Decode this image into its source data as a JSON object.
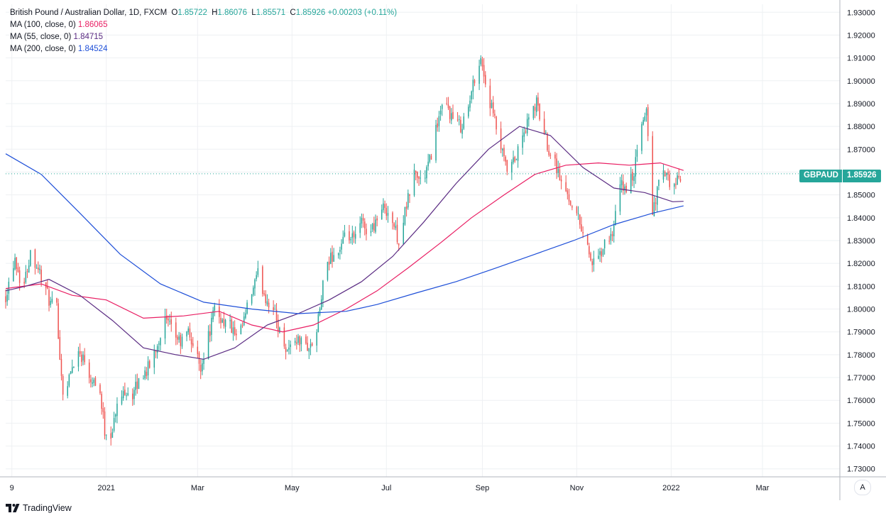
{
  "legend": {
    "title_line": "British Pound / Australian Dollar, 1D, FXCM",
    "o_key": "O",
    "o_val": "1.85722",
    "h_key": "H",
    "h_val": "1.86076",
    "l_key": "L",
    "l_val": "1.85571",
    "c_key": "C",
    "c_val": "1.85926",
    "change": "+0.00203 (+0.11%)",
    "ma100_label": "MA (100, close, 0)",
    "ma100_val": "1.86065",
    "ma55_label": "MA (55, close, 0)",
    "ma55_val": "1.84715",
    "ma200_label": "MA (200, close, 0)",
    "ma200_val": "1.84524"
  },
  "price_tag": {
    "symbol": "GBPAUD",
    "value": "1.85926"
  },
  "scale_mode": "A",
  "brand": "TradingView",
  "colors": {
    "up": "#26a69a",
    "down": "#ef5350",
    "ma100": "#e91e63",
    "ma55": "#5b2c83",
    "ma200": "#1e4fd8",
    "grid": "#eef0f3",
    "axis": "#b2b5be"
  },
  "chart_data": {
    "type": "candlestick",
    "symbol": "GBPAUD",
    "y_ticks": [
      "1.93000",
      "1.92000",
      "1.91000",
      "1.90000",
      "1.89000",
      "1.88000",
      "1.87000",
      "1.86000",
      "1.85000",
      "1.84000",
      "1.83000",
      "1.82000",
      "1.81000",
      "1.80000",
      "1.79000",
      "1.78000",
      "1.77000",
      "1.76000",
      "1.75000",
      "1.74000",
      "1.73000"
    ],
    "ylim": [
      1.7265,
      1.9335
    ],
    "x_labels": [
      "9",
      "2021",
      "Mar",
      "May",
      "Jul",
      "Sep",
      "Nov",
      "2022",
      "Mar"
    ],
    "x_axis": {
      "start": "2020-10-28",
      "end": "2022-04-20",
      "label_dates": [
        "2020-11-01",
        "2021-01-01",
        "2021-03-01",
        "2021-05-01",
        "2021-07-01",
        "2021-09-01",
        "2021-11-01",
        "2022-01-01",
        "2022-03-01"
      ]
    },
    "last_close": 1.85926,
    "price_path": [
      [
        "2020-10-28",
        1.806
      ],
      [
        "2020-11-03",
        1.823
      ],
      [
        "2020-11-08",
        1.808
      ],
      [
        "2020-11-13",
        1.825
      ],
      [
        "2020-11-18",
        1.818
      ],
      [
        "2020-11-22",
        1.81
      ],
      [
        "2020-11-26",
        1.802
      ],
      [
        "2020-11-30",
        1.8
      ],
      [
        "2020-12-03",
        1.77
      ],
      [
        "2020-12-05",
        1.76
      ],
      [
        "2020-12-08",
        1.77
      ],
      [
        "2020-12-13",
        1.782
      ],
      [
        "2020-12-18",
        1.778
      ],
      [
        "2020-12-22",
        1.77
      ],
      [
        "2020-12-27",
        1.768
      ],
      [
        "2020-12-31",
        1.747
      ],
      [
        "2021-01-04",
        1.745
      ],
      [
        "2021-01-08",
        1.757
      ],
      [
        "2021-01-13",
        1.765
      ],
      [
        "2021-01-18",
        1.762
      ],
      [
        "2021-01-23",
        1.77
      ],
      [
        "2021-01-29",
        1.775
      ],
      [
        "2021-02-03",
        1.785
      ],
      [
        "2021-02-08",
        1.795
      ],
      [
        "2021-02-13",
        1.79
      ],
      [
        "2021-02-18",
        1.785
      ],
      [
        "2021-02-23",
        1.79
      ],
      [
        "2021-02-28",
        1.78
      ],
      [
        "2021-03-03",
        1.775
      ],
      [
        "2021-03-07",
        1.785
      ],
      [
        "2021-03-12",
        1.8
      ],
      [
        "2021-03-17",
        1.795
      ],
      [
        "2021-03-22",
        1.793
      ],
      [
        "2021-03-27",
        1.785
      ],
      [
        "2021-03-31",
        1.795
      ],
      [
        "2021-04-04",
        1.805
      ],
      [
        "2021-04-09",
        1.815
      ],
      [
        "2021-04-14",
        1.805
      ],
      [
        "2021-04-19",
        1.8
      ],
      [
        "2021-04-23",
        1.79
      ],
      [
        "2021-04-28",
        1.782
      ],
      [
        "2021-05-03",
        1.787
      ],
      [
        "2021-05-08",
        1.785
      ],
      [
        "2021-05-13",
        1.783
      ],
      [
        "2021-05-17",
        1.79
      ],
      [
        "2021-05-21",
        1.81
      ],
      [
        "2021-05-26",
        1.823
      ],
      [
        "2021-05-31",
        1.825
      ],
      [
        "2021-06-05",
        1.832
      ],
      [
        "2021-06-10",
        1.83
      ],
      [
        "2021-06-15",
        1.838
      ],
      [
        "2021-06-20",
        1.833
      ],
      [
        "2021-06-25",
        1.84
      ],
      [
        "2021-06-30",
        1.845
      ],
      [
        "2021-07-04",
        1.84
      ],
      [
        "2021-07-09",
        1.83
      ],
      [
        "2021-07-14",
        1.845
      ],
      [
        "2021-07-19",
        1.86
      ],
      [
        "2021-07-24",
        1.855
      ],
      [
        "2021-07-29",
        1.865
      ],
      [
        "2021-08-03",
        1.882
      ],
      [
        "2021-08-08",
        1.89
      ],
      [
        "2021-08-13",
        1.883
      ],
      [
        "2021-08-18",
        1.88
      ],
      [
        "2021-08-23",
        1.888
      ],
      [
        "2021-08-28",
        1.905
      ],
      [
        "2021-08-31",
        1.91
      ],
      [
        "2021-09-04",
        1.895
      ],
      [
        "2021-09-08",
        1.885
      ],
      [
        "2021-09-13",
        1.87
      ],
      [
        "2021-09-17",
        1.86
      ],
      [
        "2021-09-22",
        1.865
      ],
      [
        "2021-09-27",
        1.875
      ],
      [
        "2021-10-02",
        1.885
      ],
      [
        "2021-10-06",
        1.89
      ],
      [
        "2021-10-10",
        1.88
      ],
      [
        "2021-10-14",
        1.87
      ],
      [
        "2021-10-18",
        1.865
      ],
      [
        "2021-10-22",
        1.855
      ],
      [
        "2021-10-26",
        1.85
      ],
      [
        "2021-10-30",
        1.845
      ],
      [
        "2021-11-03",
        1.838
      ],
      [
        "2021-11-07",
        1.83
      ],
      [
        "2021-11-10",
        1.822
      ],
      [
        "2021-11-13",
        1.818
      ],
      [
        "2021-11-17",
        1.825
      ],
      [
        "2021-11-21",
        1.83
      ],
      [
        "2021-11-25",
        1.835
      ],
      [
        "2021-11-29",
        1.855
      ],
      [
        "2021-12-03",
        1.852
      ],
      [
        "2021-12-08",
        1.86
      ],
      [
        "2021-12-13",
        1.88
      ],
      [
        "2021-12-16",
        1.888
      ],
      [
        "2021-12-18",
        1.865
      ],
      [
        "2021-12-20",
        1.842
      ],
      [
        "2021-12-24",
        1.855
      ],
      [
        "2021-12-28",
        1.86
      ],
      [
        "2022-01-01",
        1.852
      ],
      [
        "2022-01-05",
        1.856
      ],
      [
        "2022-01-09",
        1.8593
      ]
    ],
    "series": [
      {
        "name": "MA (100, close, 0)",
        "color": "#e91e63",
        "points": [
          [
            "2020-10-28",
            1.809
          ],
          [
            "2020-11-20",
            1.811
          ],
          [
            "2020-12-10",
            1.806
          ],
          [
            "2021-01-01",
            1.804
          ],
          [
            "2021-01-25",
            1.796
          ],
          [
            "2021-02-20",
            1.797
          ],
          [
            "2021-03-15",
            1.799
          ],
          [
            "2021-04-05",
            1.793
          ],
          [
            "2021-04-25",
            1.79
          ],
          [
            "2021-05-15",
            1.793
          ],
          [
            "2021-06-05",
            1.8
          ],
          [
            "2021-06-25",
            1.808
          ],
          [
            "2021-07-15",
            1.818
          ],
          [
            "2021-08-05",
            1.829
          ],
          [
            "2021-08-25",
            1.84
          ],
          [
            "2021-09-15",
            1.85
          ],
          [
            "2021-10-05",
            1.859
          ],
          [
            "2021-10-25",
            1.863
          ],
          [
            "2021-11-15",
            1.864
          ],
          [
            "2021-12-05",
            1.863
          ],
          [
            "2021-12-25",
            1.864
          ],
          [
            "2022-01-09",
            1.8607
          ]
        ]
      },
      {
        "name": "MA (55, close, 0)",
        "color": "#5b2c83",
        "points": [
          [
            "2020-10-28",
            1.808
          ],
          [
            "2020-11-10",
            1.81
          ],
          [
            "2020-11-25",
            1.813
          ],
          [
            "2020-12-15",
            1.806
          ],
          [
            "2021-01-05",
            1.795
          ],
          [
            "2021-01-25",
            1.783
          ],
          [
            "2021-02-15",
            1.78
          ],
          [
            "2021-03-05",
            1.778
          ],
          [
            "2021-03-25",
            1.783
          ],
          [
            "2021-04-15",
            1.793
          ],
          [
            "2021-05-05",
            1.798
          ],
          [
            "2021-05-25",
            1.804
          ],
          [
            "2021-06-15",
            1.812
          ],
          [
            "2021-07-05",
            1.823
          ],
          [
            "2021-07-25",
            1.838
          ],
          [
            "2021-08-15",
            1.855
          ],
          [
            "2021-09-05",
            1.87
          ],
          [
            "2021-09-25",
            1.88
          ],
          [
            "2021-10-15",
            1.876
          ],
          [
            "2021-11-05",
            1.862
          ],
          [
            "2021-11-25",
            1.853
          ],
          [
            "2021-12-15",
            1.851
          ],
          [
            "2022-01-02",
            1.847
          ],
          [
            "2022-01-09",
            1.8472
          ]
        ]
      },
      {
        "name": "MA (200, close, 0)",
        "color": "#1e4fd8",
        "points": [
          [
            "2020-10-28",
            1.868
          ],
          [
            "2020-11-20",
            1.859
          ],
          [
            "2020-12-15",
            1.842
          ],
          [
            "2021-01-10",
            1.824
          ],
          [
            "2021-02-05",
            1.811
          ],
          [
            "2021-03-05",
            1.803
          ],
          [
            "2021-04-05",
            1.8
          ],
          [
            "2021-05-05",
            1.798
          ],
          [
            "2021-06-05",
            1.799
          ],
          [
            "2021-06-25",
            1.802
          ],
          [
            "2021-07-20",
            1.807
          ],
          [
            "2021-08-15",
            1.812
          ],
          [
            "2021-09-10",
            1.818
          ],
          [
            "2021-10-05",
            1.824
          ],
          [
            "2021-10-30",
            1.83
          ],
          [
            "2021-11-25",
            1.837
          ],
          [
            "2021-12-20",
            1.842
          ],
          [
            "2022-01-09",
            1.8452
          ]
        ]
      }
    ],
    "grid": true,
    "legend_position": "top-left"
  }
}
